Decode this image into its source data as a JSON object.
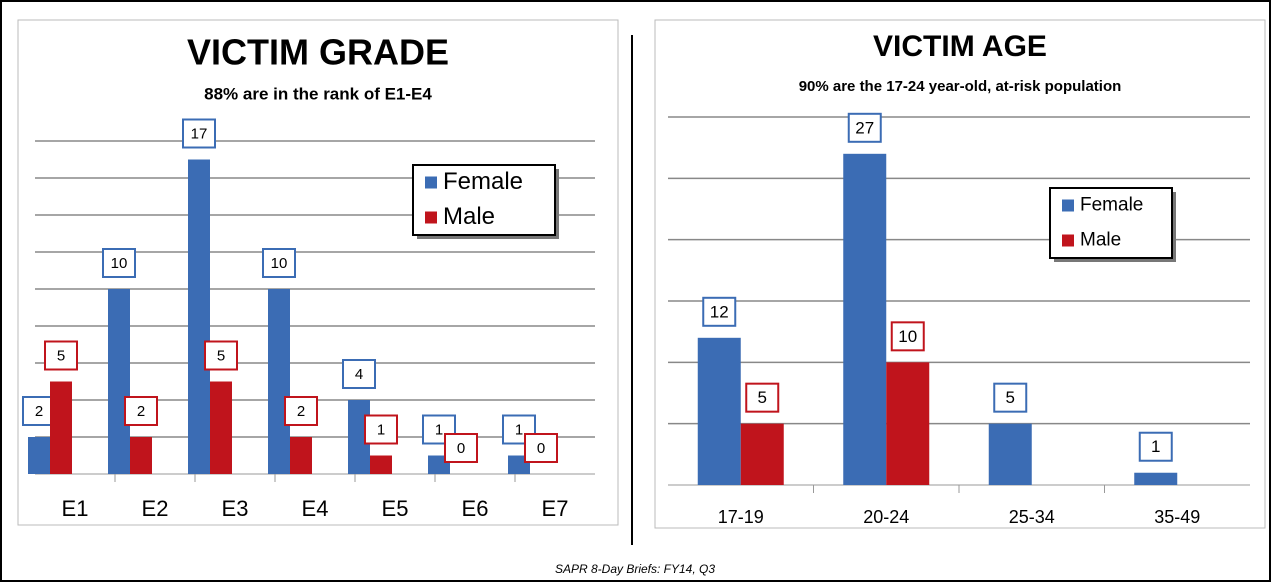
{
  "chart_data": [
    {
      "type": "bar",
      "title": "VICTIM  GRADE",
      "subtitle": "88% are in the rank of E1-E4",
      "categories": [
        "E1",
        "E2",
        "E3",
        "E4",
        "E5",
        "E6",
        "E7"
      ],
      "series": [
        {
          "name": "Female",
          "color": "#3b6cb4",
          "values": [
            2,
            10,
            17,
            10,
            4,
            1,
            1
          ]
        },
        {
          "name": "Male",
          "color": "#c0141c",
          "values": [
            5,
            2,
            5,
            2,
            1,
            0,
            0
          ]
        }
      ],
      "ylim": [
        0,
        18
      ],
      "yticks": [
        0,
        2,
        4,
        6,
        8,
        10,
        12,
        14,
        16,
        18
      ],
      "grid": true,
      "legend": "upper right"
    },
    {
      "type": "bar",
      "title": "VICTIM AGE",
      "subtitle": "90% are the 17-24 year-old, at-risk population",
      "categories": [
        "17-19",
        "20-24",
        "25-34",
        "35-49"
      ],
      "series": [
        {
          "name": "Female",
          "color": "#3b6cb4",
          "values": [
            12,
            27,
            5,
            1
          ]
        },
        {
          "name": "Male",
          "color": "#c0141c",
          "values": [
            5,
            10,
            null,
            null
          ]
        }
      ],
      "ylim": [
        0,
        30
      ],
      "yticks": [
        0,
        5,
        10,
        15,
        20,
        25,
        30
      ],
      "grid": true,
      "legend": "upper right"
    }
  ],
  "footer": "SAPR 8-Day Briefs: FY14,  Q3"
}
